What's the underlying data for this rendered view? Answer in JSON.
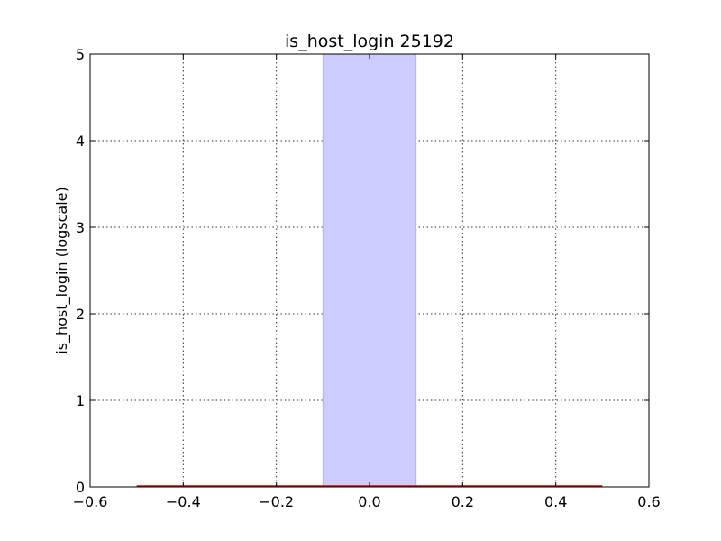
{
  "chart_data": {
    "type": "bar",
    "title": "is_host_login 25192",
    "xlabel": "",
    "ylabel": "is_host_login (logscale)",
    "xlim": [
      -0.6,
      0.6
    ],
    "ylim": [
      0,
      5
    ],
    "x_ticks": [
      -0.6,
      -0.4,
      -0.2,
      0.0,
      0.2,
      0.4,
      0.6
    ],
    "x_tick_labels": [
      "−0.6",
      "−0.4",
      "−0.2",
      "0.0",
      "0.2",
      "0.4",
      "0.6"
    ],
    "y_ticks": [
      0,
      1,
      2,
      3,
      4,
      5
    ],
    "y_tick_labels": [
      "0",
      "1",
      "2",
      "3",
      "4",
      "5"
    ],
    "grid": true,
    "bars": [
      {
        "x_start": -0.1,
        "x_end": 0.1,
        "value": 5,
        "color": "#ccccff",
        "edge_color": "#b4b4d8"
      }
    ],
    "lines": [
      {
        "x": [
          -0.5,
          0.5
        ],
        "y": [
          0,
          0
        ],
        "color": "#d00000"
      }
    ]
  }
}
